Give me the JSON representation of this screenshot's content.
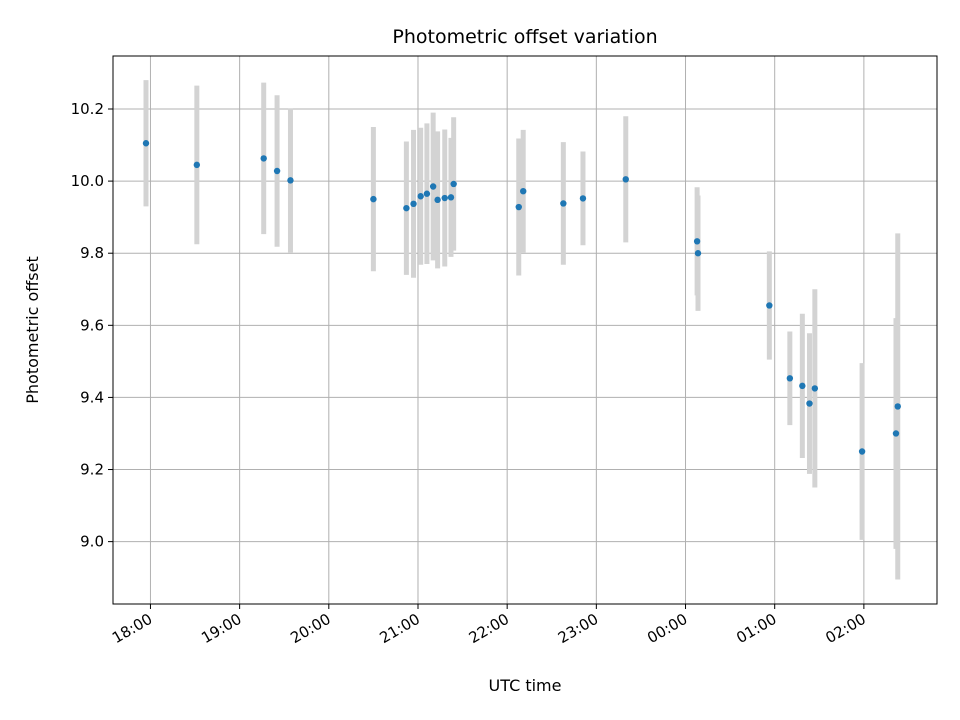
{
  "chart_data": {
    "type": "scatter",
    "title": "Photometric offset variation",
    "xlabel": "UTC time",
    "ylabel": "Photometric offset",
    "grid": true,
    "x_ticks": [
      {
        "t": 17.0,
        "label": "18:00"
      },
      {
        "t": 18.0,
        "label": "19:00"
      },
      {
        "t": 19.0,
        "label": "20:00"
      },
      {
        "t": 20.0,
        "label": "21:00"
      },
      {
        "t": 21.0,
        "label": "22:00"
      },
      {
        "t": 22.0,
        "label": "23:00"
      },
      {
        "t": 23.0,
        "label": "00:00"
      },
      {
        "t": 24.0,
        "label": "01:00"
      },
      {
        "t": 25.0,
        "label": "02:00"
      }
    ],
    "y_ticks": [
      {
        "v": 9.0,
        "label": "9.0"
      },
      {
        "v": 9.2,
        "label": "9.2"
      },
      {
        "v": 9.4,
        "label": "9.4"
      },
      {
        "v": 9.6,
        "label": "9.6"
      },
      {
        "v": 9.8,
        "label": "9.8"
      },
      {
        "v": 10.0,
        "label": "10.0"
      },
      {
        "v": 10.2,
        "label": "10.2"
      }
    ],
    "xlim": [
      16.58,
      25.82
    ],
    "ylim": [
      8.827,
      10.347
    ],
    "colors": {
      "point": "#1f77b4",
      "errorbar": "#d3d3d3",
      "grid": "#b0b0b0"
    },
    "points": [
      {
        "t": 16.95,
        "y": 10.105,
        "err": 0.175
      },
      {
        "t": 17.52,
        "y": 10.045,
        "err": 0.22
      },
      {
        "t": 18.27,
        "y": 10.063,
        "err": 0.21
      },
      {
        "t": 18.42,
        "y": 10.028,
        "err": 0.21
      },
      {
        "t": 18.57,
        "y": 10.002,
        "err": 0.2
      },
      {
        "t": 19.5,
        "y": 9.95,
        "err": 0.2
      },
      {
        "t": 19.87,
        "y": 9.925,
        "err": 0.185
      },
      {
        "t": 19.95,
        "y": 9.937,
        "err": 0.205
      },
      {
        "t": 20.03,
        "y": 9.958,
        "err": 0.19
      },
      {
        "t": 20.1,
        "y": 9.965,
        "err": 0.195
      },
      {
        "t": 20.17,
        "y": 9.985,
        "err": 0.205
      },
      {
        "t": 20.22,
        "y": 9.948,
        "err": 0.19
      },
      {
        "t": 20.3,
        "y": 9.953,
        "err": 0.19
      },
      {
        "t": 20.37,
        "y": 9.955,
        "err": 0.165
      },
      {
        "t": 20.4,
        "y": 9.992,
        "err": 0.185
      },
      {
        "t": 21.13,
        "y": 9.928,
        "err": 0.19
      },
      {
        "t": 21.18,
        "y": 9.972,
        "err": 0.17
      },
      {
        "t": 21.63,
        "y": 9.938,
        "err": 0.17
      },
      {
        "t": 21.85,
        "y": 9.952,
        "err": 0.13
      },
      {
        "t": 22.33,
        "y": 10.005,
        "err": 0.175
      },
      {
        "t": 23.13,
        "y": 9.833,
        "err": 0.15
      },
      {
        "t": 23.14,
        "y": 9.8,
        "err": 0.16
      },
      {
        "t": 23.94,
        "y": 9.655,
        "err": 0.15
      },
      {
        "t": 24.17,
        "y": 9.453,
        "err": 0.13
      },
      {
        "t": 24.31,
        "y": 9.432,
        "err": 0.2
      },
      {
        "t": 24.39,
        "y": 9.383,
        "err": 0.195
      },
      {
        "t": 24.45,
        "y": 9.425,
        "err": 0.275
      },
      {
        "t": 24.98,
        "y": 9.25,
        "err": 0.245
      },
      {
        "t": 25.36,
        "y": 9.3,
        "err": 0.32
      },
      {
        "t": 25.38,
        "y": 9.375,
        "err": 0.48
      }
    ]
  }
}
